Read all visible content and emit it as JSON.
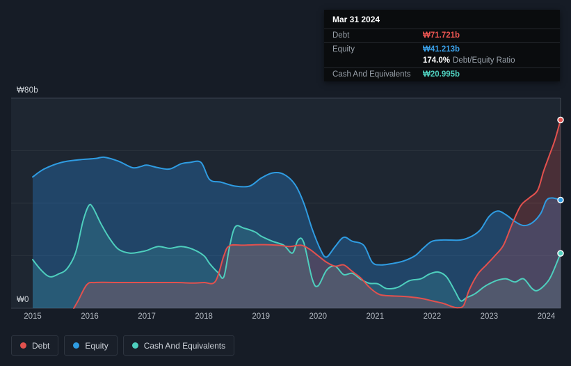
{
  "tooltip": {
    "date": "Mar 31 2024",
    "debt_label": "Debt",
    "debt_value": "₩71.721b",
    "equity_label": "Equity",
    "equity_value": "₩41.213b",
    "ratio_value": "174.0%",
    "ratio_label": "Debt/Equity Ratio",
    "cash_label": "Cash And Equivalents",
    "cash_value": "₩20.995b"
  },
  "axis": {
    "y_top": "₩80b",
    "y_bottom": "₩0"
  },
  "legend": {
    "items": [
      {
        "label": "Debt",
        "color": "#e2514e"
      },
      {
        "label": "Equity",
        "color": "#2f9ce2"
      },
      {
        "label": "Cash And Equivalents",
        "color": "#4ecfbe"
      }
    ]
  },
  "chart_data": {
    "type": "area",
    "title": "Debt, Equity and Cash history (₩ billions)",
    "ylim": [
      0,
      80
    ],
    "xlim": [
      2015,
      2024.25
    ],
    "grid_faint": [
      20,
      40,
      60
    ],
    "grid_main": [
      0,
      80
    ],
    "x_ticks": [
      2015,
      2016,
      2017,
      2018,
      2019,
      2020,
      2021,
      2022,
      2023,
      2024
    ],
    "x_tick_labels": [
      "2015",
      "2016",
      "2017",
      "2018",
      "2019",
      "2020",
      "2021",
      "2022",
      "2023",
      "2024"
    ],
    "legend_position": "bottom-left",
    "series": [
      {
        "name": "Debt",
        "color": "#e2514e",
        "fill": "rgba(226,81,78,0.22)",
        "end_value": 71.721,
        "points": [
          [
            2015.72,
            0
          ],
          [
            2015.8,
            3
          ],
          [
            2015.95,
            9
          ],
          [
            2016.1,
            9.8
          ],
          [
            2016.5,
            9.8
          ],
          [
            2017.0,
            9.8
          ],
          [
            2017.5,
            9.8
          ],
          [
            2017.8,
            9.6
          ],
          [
            2018.0,
            9.8
          ],
          [
            2018.2,
            10.2
          ],
          [
            2018.35,
            20
          ],
          [
            2018.45,
            23.8
          ],
          [
            2018.7,
            24
          ],
          [
            2019.0,
            24.2
          ],
          [
            2019.3,
            24
          ],
          [
            2019.5,
            23.5
          ],
          [
            2019.7,
            24
          ],
          [
            2019.85,
            22.5
          ],
          [
            2020.0,
            20
          ],
          [
            2020.15,
            17.5
          ],
          [
            2020.3,
            16
          ],
          [
            2020.45,
            16.5
          ],
          [
            2020.6,
            14
          ],
          [
            2020.75,
            11.5
          ],
          [
            2020.9,
            8
          ],
          [
            2021.05,
            5.5
          ],
          [
            2021.2,
            4.8
          ],
          [
            2021.5,
            4.5
          ],
          [
            2021.8,
            3.8
          ],
          [
            2022.0,
            2.8
          ],
          [
            2022.2,
            1.8
          ],
          [
            2022.35,
            0.6
          ],
          [
            2022.45,
            0.2
          ],
          [
            2022.55,
            1
          ],
          [
            2022.65,
            7
          ],
          [
            2022.8,
            13
          ],
          [
            2022.95,
            16.5
          ],
          [
            2023.1,
            20
          ],
          [
            2023.25,
            24
          ],
          [
            2023.4,
            32
          ],
          [
            2023.55,
            39
          ],
          [
            2023.7,
            42
          ],
          [
            2023.85,
            45
          ],
          [
            2023.95,
            52
          ],
          [
            2024.05,
            58
          ],
          [
            2024.15,
            64
          ],
          [
            2024.25,
            71.7
          ]
        ]
      },
      {
        "name": "Equity",
        "color": "#2f9ce2",
        "fill": "rgba(40,130,210,0.35)",
        "end_value": 41.213,
        "points": [
          [
            2015.0,
            50
          ],
          [
            2015.2,
            53
          ],
          [
            2015.5,
            55.5
          ],
          [
            2015.8,
            56.5
          ],
          [
            2016.1,
            57
          ],
          [
            2016.25,
            57.5
          ],
          [
            2016.5,
            56
          ],
          [
            2016.75,
            53.5
          ],
          [
            2016.9,
            54
          ],
          [
            2017.0,
            54.5
          ],
          [
            2017.2,
            53.5
          ],
          [
            2017.4,
            53
          ],
          [
            2017.6,
            55
          ],
          [
            2017.75,
            55.5
          ],
          [
            2017.95,
            55.5
          ],
          [
            2018.1,
            49
          ],
          [
            2018.3,
            48
          ],
          [
            2018.55,
            46.5
          ],
          [
            2018.8,
            46.5
          ],
          [
            2019.0,
            49.5
          ],
          [
            2019.2,
            51.5
          ],
          [
            2019.4,
            51
          ],
          [
            2019.6,
            47
          ],
          [
            2019.75,
            40
          ],
          [
            2019.9,
            30
          ],
          [
            2020.05,
            22
          ],
          [
            2020.15,
            19.5
          ],
          [
            2020.3,
            23.5
          ],
          [
            2020.45,
            27
          ],
          [
            2020.6,
            25.5
          ],
          [
            2020.8,
            24
          ],
          [
            2020.95,
            17.5
          ],
          [
            2021.1,
            16.5
          ],
          [
            2021.3,
            17
          ],
          [
            2021.5,
            18
          ],
          [
            2021.7,
            20
          ],
          [
            2021.85,
            23
          ],
          [
            2022.0,
            25.5
          ],
          [
            2022.2,
            26
          ],
          [
            2022.5,
            26
          ],
          [
            2022.7,
            27.5
          ],
          [
            2022.85,
            30
          ],
          [
            2023.0,
            35
          ],
          [
            2023.15,
            37
          ],
          [
            2023.3,
            35.5
          ],
          [
            2023.45,
            33
          ],
          [
            2023.6,
            31.5
          ],
          [
            2023.75,
            32.5
          ],
          [
            2023.9,
            36
          ],
          [
            2024.0,
            41
          ],
          [
            2024.1,
            42
          ],
          [
            2024.25,
            41.2
          ]
        ]
      },
      {
        "name": "Cash And Equivalents",
        "color": "#4ecfbe",
        "fill": "rgba(78,207,190,0.16)",
        "end_value": 20.995,
        "points": [
          [
            2015.0,
            18.5
          ],
          [
            2015.15,
            14.5
          ],
          [
            2015.3,
            12
          ],
          [
            2015.45,
            13
          ],
          [
            2015.6,
            15
          ],
          [
            2015.75,
            21
          ],
          [
            2015.88,
            33
          ],
          [
            2015.98,
            39
          ],
          [
            2016.05,
            38.5
          ],
          [
            2016.2,
            32
          ],
          [
            2016.35,
            26.5
          ],
          [
            2016.5,
            22.5
          ],
          [
            2016.7,
            21
          ],
          [
            2016.9,
            21.5
          ],
          [
            2017.0,
            22
          ],
          [
            2017.2,
            23.5
          ],
          [
            2017.4,
            22.8
          ],
          [
            2017.6,
            23.5
          ],
          [
            2017.8,
            22.5
          ],
          [
            2018.0,
            20
          ],
          [
            2018.1,
            17
          ],
          [
            2018.25,
            13.5
          ],
          [
            2018.35,
            12
          ],
          [
            2018.45,
            23.5
          ],
          [
            2018.55,
            31
          ],
          [
            2018.7,
            30.5
          ],
          [
            2018.9,
            29
          ],
          [
            2019.0,
            27.5
          ],
          [
            2019.2,
            25.5
          ],
          [
            2019.4,
            24
          ],
          [
            2019.55,
            21
          ],
          [
            2019.65,
            26
          ],
          [
            2019.75,
            25
          ],
          [
            2019.9,
            11
          ],
          [
            2020.0,
            8.5
          ],
          [
            2020.15,
            14.5
          ],
          [
            2020.3,
            16
          ],
          [
            2020.45,
            12.8
          ],
          [
            2020.6,
            13.3
          ],
          [
            2020.75,
            11
          ],
          [
            2020.9,
            9.5
          ],
          [
            2021.05,
            9.3
          ],
          [
            2021.2,
            7.5
          ],
          [
            2021.4,
            8
          ],
          [
            2021.6,
            10.5
          ],
          [
            2021.8,
            11.2
          ],
          [
            2021.95,
            13
          ],
          [
            2022.1,
            13.8
          ],
          [
            2022.25,
            12
          ],
          [
            2022.4,
            6.5
          ],
          [
            2022.5,
            2.8
          ],
          [
            2022.6,
            4
          ],
          [
            2022.75,
            5.5
          ],
          [
            2022.9,
            8
          ],
          [
            2023.0,
            9.3
          ],
          [
            2023.15,
            10.7
          ],
          [
            2023.3,
            11.2
          ],
          [
            2023.45,
            10
          ],
          [
            2023.6,
            11.2
          ],
          [
            2023.75,
            7.5
          ],
          [
            2023.85,
            6.8
          ],
          [
            2024.0,
            9.5
          ],
          [
            2024.1,
            13
          ],
          [
            2024.25,
            20.9
          ]
        ]
      }
    ]
  }
}
